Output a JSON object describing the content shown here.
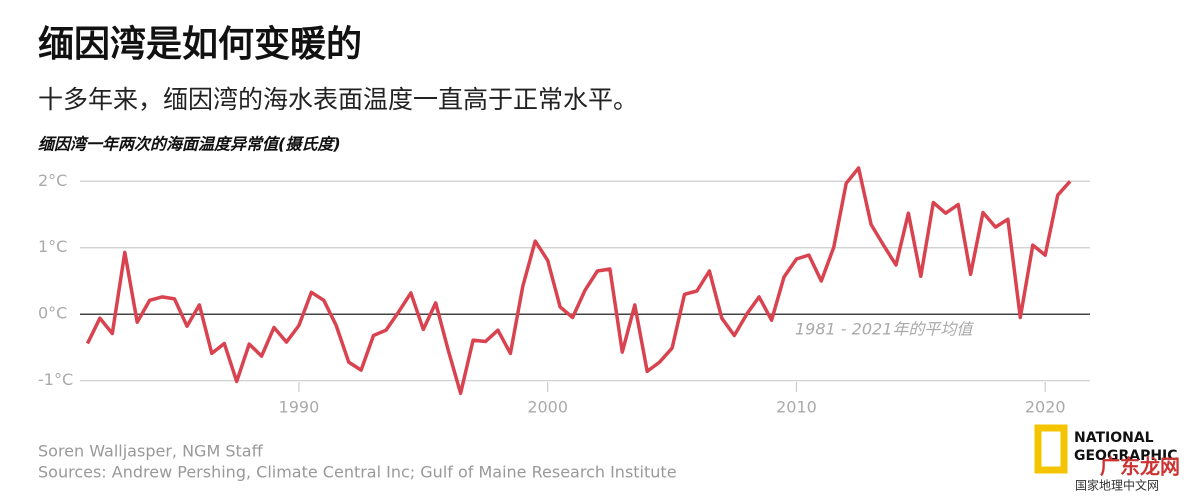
{
  "chart_data": {
    "type": "line",
    "title": "缅因湾是如何变暖的",
    "subtitle": "十多年来，缅因湾的海水表面温度一直高于正常水平。",
    "y_label": "缅因湾一年两次的海面温度异常值(摄氏度)",
    "annotation": "1981 - 2021年的平均值",
    "credit": "Soren Walljasper, NGM Staff",
    "sources": "Sources: Andrew Pershing, Climate Central Inc; Gulf of Maine Research Institute",
    "logo": [
      "NATIONAL",
      "GEOGRAPHIC"
    ],
    "watermark": [
      "广东龙网",
      "国家地理中文网"
    ],
    "x": [
      1981.5,
      1982,
      1982.5,
      1983,
      1983.5,
      1984,
      1984.5,
      1985,
      1985.5,
      1986,
      1986.5,
      1987,
      1987.5,
      1988,
      1988.5,
      1989,
      1989.5,
      1990,
      1990.5,
      1991,
      1991.5,
      1992,
      1992.5,
      1993,
      1993.5,
      1994,
      1994.5,
      1995,
      1995.5,
      1996,
      1996.5,
      1997,
      1997.5,
      1998,
      1998.5,
      1999,
      1999.5,
      2000,
      2000.5,
      2001,
      2001.5,
      2002,
      2002.5,
      2003,
      2003.5,
      2004,
      2004.5,
      2005,
      2005.5,
      2006,
      2006.5,
      2007,
      2007.5,
      2008,
      2008.5,
      2009,
      2009.5,
      2010,
      2010.5,
      2011,
      2011.5,
      2012,
      2012.5,
      2013,
      2013.5,
      2014,
      2014.5,
      2015,
      2015.5,
      2016,
      2016.5,
      2017,
      2017.5,
      2018,
      2018.5,
      2019,
      2019.5,
      2020,
      2020.5,
      2021
    ],
    "series": [
      {
        "color": "#d8434f",
        "values": [
          -0.44,
          -0.06,
          -0.29,
          0.93,
          -0.12,
          0.21,
          0.26,
          0.23,
          -0.18,
          0.14,
          -0.59,
          -0.44,
          -1.01,
          -0.45,
          -0.63,
          -0.2,
          -0.42,
          -0.17,
          0.33,
          0.21,
          -0.17,
          -0.72,
          -0.84,
          -0.32,
          -0.24,
          0.03,
          0.32,
          -0.23,
          0.17,
          -0.54,
          -1.19,
          -0.39,
          -0.41,
          -0.24,
          -0.59,
          0.42,
          1.1,
          0.81,
          0.11,
          -0.05,
          0.36,
          0.65,
          0.68,
          -0.57,
          0.14,
          -0.86,
          -0.72,
          -0.51,
          0.3,
          0.35,
          0.65,
          -0.06,
          -0.32,
          0,
          0.26,
          -0.09,
          0.56,
          0.83,
          0.89,
          0.5,
          1.01,
          1.97,
          2.2,
          1.35,
          1.04,
          0.74,
          1.52,
          0.57,
          1.68,
          1.52,
          1.65,
          0.6,
          1.53,
          1.31,
          1.43,
          -0.05,
          1.04,
          0.89,
          1.79,
          2
        ]
      }
    ],
    "xlim": [
      1981.2,
      2021.8
    ],
    "ylim": [
      -1.14,
      2.32
    ],
    "xticks": [
      1990,
      2000,
      2010,
      2020
    ],
    "yticks": [
      {
        "value": -1,
        "label": "-1°C"
      },
      {
        "value": 0,
        "label": "0°C"
      },
      {
        "value": 1,
        "label": "1°C"
      },
      {
        "value": 2,
        "label": "2°C"
      }
    ],
    "grid": true
  }
}
